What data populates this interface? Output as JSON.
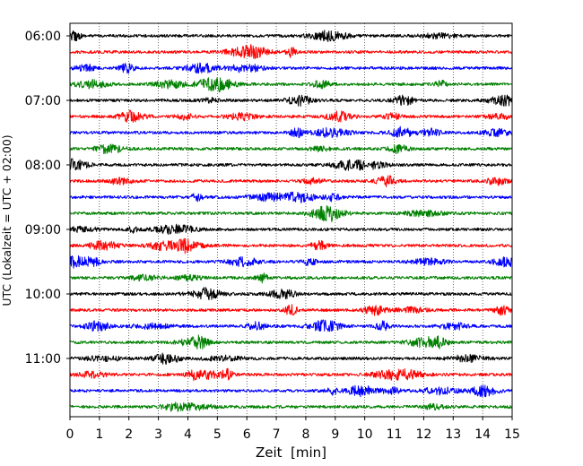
{
  "chart_data": {
    "type": "line",
    "title": "",
    "xlabel": "Zeit  [min]",
    "ylabel": "UTC (Lokalzeit = UTC + 02:00)",
    "xlim": [
      0,
      15
    ],
    "x_ticks": [
      "0",
      "1",
      "2",
      "3",
      "4",
      "5",
      "6",
      "7",
      "8",
      "9",
      "10",
      "11",
      "12",
      "13",
      "14",
      "15"
    ],
    "y_ticks": [
      "06:00",
      "07:00",
      "08:00",
      "09:00",
      "10:00",
      "11:00"
    ],
    "grid": "x-dotted",
    "colors": [
      "#000000",
      "#ff0000",
      "#0000ff",
      "#008000"
    ],
    "series": [
      {
        "start": "06:00",
        "color": "#000000"
      },
      {
        "start": "06:15",
        "color": "#ff0000"
      },
      {
        "start": "06:30",
        "color": "#0000ff"
      },
      {
        "start": "06:45",
        "color": "#008000"
      },
      {
        "start": "07:00",
        "color": "#000000"
      },
      {
        "start": "07:15",
        "color": "#ff0000"
      },
      {
        "start": "07:30",
        "color": "#0000ff"
      },
      {
        "start": "07:45",
        "color": "#008000"
      },
      {
        "start": "08:00",
        "color": "#000000"
      },
      {
        "start": "08:15",
        "color": "#ff0000"
      },
      {
        "start": "08:30",
        "color": "#0000ff"
      },
      {
        "start": "08:45",
        "color": "#008000"
      },
      {
        "start": "09:00",
        "color": "#000000"
      },
      {
        "start": "09:15",
        "color": "#ff0000"
      },
      {
        "start": "09:30",
        "color": "#0000ff"
      },
      {
        "start": "09:45",
        "color": "#008000"
      },
      {
        "start": "10:00",
        "color": "#000000"
      },
      {
        "start": "10:15",
        "color": "#ff0000"
      },
      {
        "start": "10:30",
        "color": "#0000ff"
      },
      {
        "start": "10:45",
        "color": "#008000"
      },
      {
        "start": "11:00",
        "color": "#000000"
      },
      {
        "start": "11:15",
        "color": "#ff0000"
      },
      {
        "start": "11:30",
        "color": "#0000ff"
      },
      {
        "start": "11:45",
        "color": "#008000"
      }
    ]
  }
}
